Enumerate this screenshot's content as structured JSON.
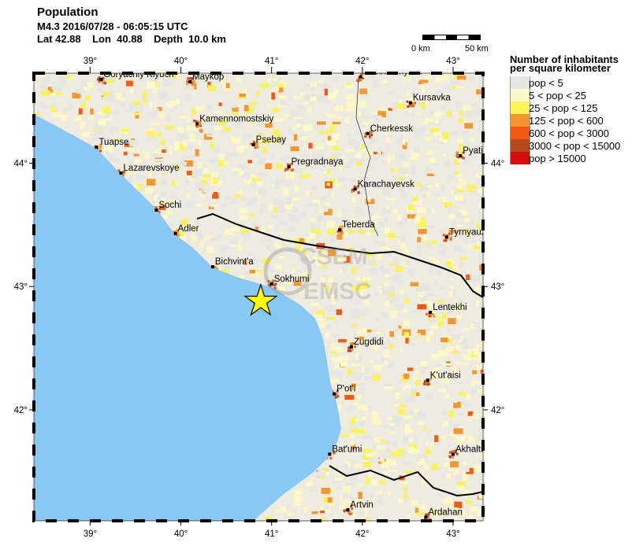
{
  "header": {
    "title": "Population",
    "event": "M4.3  2016/07/28 - 06:05:15 UTC",
    "location": "Lat 42.88    Lon  40.88    Depth  10.0 km"
  },
  "epicenter": {
    "lat": 42.88,
    "lon": 40.88,
    "magnitude": "M4.3",
    "depth_km": 10.0,
    "color": "#ffff00"
  },
  "scale_bar": {
    "left": "0 km",
    "right": "50 km"
  },
  "axes": {
    "lon_ticks": [
      "39°",
      "40°",
      "41°",
      "42°",
      "43°"
    ],
    "lat_ticks": [
      "44°",
      "43°",
      "42°"
    ],
    "lon_range": [
      38.38,
      43.33
    ],
    "lat_range": [
      41.1,
      44.73
    ]
  },
  "legend": {
    "title_line1": "Number of inhabitants",
    "title_line2": "per square kilometer",
    "items": [
      {
        "label": "pop < 5",
        "color": "#e6e6e2"
      },
      {
        "label": "5 < pop < 25",
        "color": "#fdf8c8"
      },
      {
        "label": "25 < pop < 125",
        "color": "#fbf35a"
      },
      {
        "label": "125 < pop < 600",
        "color": "#f5962e"
      },
      {
        "label": "600 < pop < 3000",
        "color": "#f25a14"
      },
      {
        "label": "3000 < pop < 15000",
        "color": "#b8481a"
      },
      {
        "label": "pop > 15000",
        "color": "#d40e0e"
      }
    ]
  },
  "watermark": {
    "text1": "CSEM",
    "text2": "EMSC"
  },
  "colors": {
    "sea": "#89c7f5",
    "land": "#eeece0",
    "border": "#000000"
  },
  "cities": [
    {
      "name": "Goryachiy Klyuch",
      "lat": 44.68,
      "lon": 39.12
    },
    {
      "name": "Maykop",
      "lat": 44.66,
      "lon": 40.1
    },
    {
      "name": "Nevinnomyssk",
      "lat": 44.7,
      "lon": 41.98
    },
    {
      "name": "Kursavka",
      "lat": 44.49,
      "lon": 42.53
    },
    {
      "name": "Kamennomostskiy",
      "lat": 44.32,
      "lon": 40.18
    },
    {
      "name": "Cherkessk",
      "lat": 44.24,
      "lon": 42.06
    },
    {
      "name": "Tuapse",
      "lat": 44.13,
      "lon": 39.07
    },
    {
      "name": "Psebay",
      "lat": 44.15,
      "lon": 40.8
    },
    {
      "name": "Pyatigorsk",
      "lat": 44.06,
      "lon": 43.08
    },
    {
      "name": "Lazarevskoye",
      "lat": 43.92,
      "lon": 39.34
    },
    {
      "name": "Pregradnaya",
      "lat": 43.97,
      "lon": 41.19
    },
    {
      "name": "Karachayevsk",
      "lat": 43.79,
      "lon": 41.92
    },
    {
      "name": "Sochi",
      "lat": 43.62,
      "lon": 39.73
    },
    {
      "name": "Adler",
      "lat": 43.43,
      "lon": 39.94
    },
    {
      "name": "Teberda",
      "lat": 43.46,
      "lon": 41.75
    },
    {
      "name": "Tyrnyauz",
      "lat": 43.4,
      "lon": 42.93
    },
    {
      "name": "Bichvint'a",
      "lat": 43.16,
      "lon": 40.35
    },
    {
      "name": "Sokhumi",
      "lat": 43.02,
      "lon": 41.0
    },
    {
      "name": "Lentekhi",
      "lat": 42.79,
      "lon": 42.75
    },
    {
      "name": "Zugdidi",
      "lat": 42.51,
      "lon": 41.88
    },
    {
      "name": "K'ut'aisi",
      "lat": 42.24,
      "lon": 42.72
    },
    {
      "name": "P'ot'i",
      "lat": 42.13,
      "lon": 41.69
    },
    {
      "name": "Bat'umi",
      "lat": 41.64,
      "lon": 41.64
    },
    {
      "name": "Akhaltsikhe",
      "lat": 41.64,
      "lon": 43.0
    },
    {
      "name": "Artvin",
      "lat": 41.19,
      "lon": 41.84
    },
    {
      "name": "Ardahan",
      "lat": 41.13,
      "lon": 42.7
    }
  ]
}
